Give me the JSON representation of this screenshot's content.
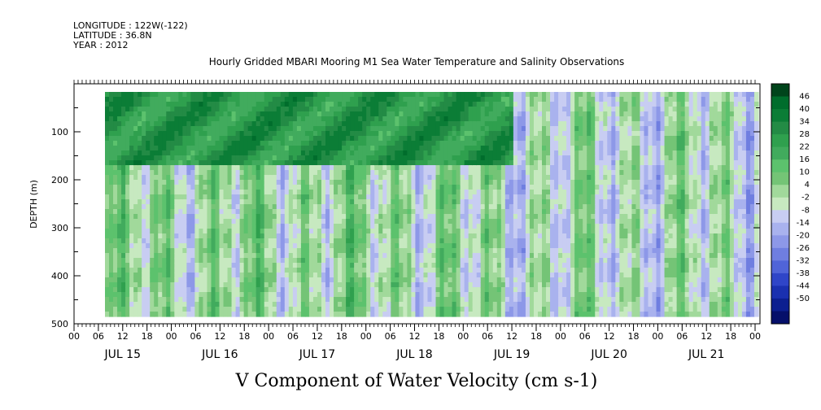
{
  "header": {
    "longitude": "LONGITUDE : 122W(-122)",
    "latitude": "LATITUDE : 36.8N",
    "year": "YEAR : 2012"
  },
  "chart_data": {
    "type": "heatmap",
    "title": "Hourly Gridded MBARI Mooring M1 Sea Water Temperature and Salinity Observations",
    "xlabel": "V Component of Water Velocity (cm s-1)",
    "ylabel": "DEPTH (m)",
    "ylim": [
      500,
      0
    ],
    "y_ticks": [
      "100",
      "200",
      "300",
      "400",
      "500"
    ],
    "hour_ticks": [
      "00",
      "06",
      "12",
      "18",
      "00",
      "06",
      "12",
      "18",
      "00",
      "06",
      "12",
      "18",
      "00",
      "06",
      "12",
      "18",
      "00",
      "06",
      "12",
      "18",
      "00",
      "06",
      "12",
      "18",
      "00",
      "06",
      "12",
      "18",
      "00"
    ],
    "day_labels": [
      "JUL 15",
      "JUL 16",
      "JUL 17",
      "JUL 18",
      "JUL 19",
      "JUL 20",
      "JUL 21"
    ],
    "colorbar": {
      "labels": [
        "46",
        "40",
        "34",
        "28",
        "22",
        "16",
        "10",
        "4",
        "-2",
        "-8",
        "-14",
        "-20",
        "-26",
        "-32",
        "-38",
        "-44",
        "-50"
      ],
      "colors": [
        "#00441b",
        "#006d2c",
        "#0b7d36",
        "#238b45",
        "#2fa04e",
        "#41ab5d",
        "#5cc26d",
        "#74c476",
        "#a1d99b",
        "#c7e9c0",
        "#c8cdf2",
        "#a9b2ee",
        "#8d98e8",
        "#6f7ee0",
        "#5064d8",
        "#2f45c8",
        "#1a30b0",
        "#0c1f90",
        "#050f6a"
      ]
    },
    "field_summary": [
      {
        "days": "JUL 15 - JUL 16",
        "upper_0_150m": "strong northward (+16 to +34)",
        "lower_150_480m": "mixed -8 to +10"
      },
      {
        "days": "JUL 17 - JUL 18",
        "upper_0_150m": "strong northward (+16 to +34)",
        "lower_150_480m": "alternating bands -14 to +16"
      },
      {
        "days": "JUL 19 - JUL 21",
        "upper_0_150m": "mostly weak (-8 to +10)",
        "lower_150_480m": "mostly southward (-2 to -14) with green patches"
      }
    ]
  }
}
